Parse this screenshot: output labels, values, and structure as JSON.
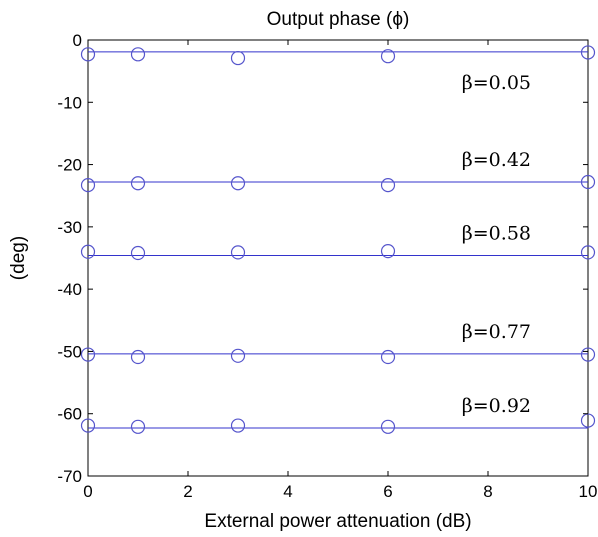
{
  "chart_data": {
    "type": "scatter",
    "title": "Output phase (ϕ)",
    "xlabel": "External power attenuation (dB)",
    "ylabel": "(deg)",
    "xlim": [
      0,
      10
    ],
    "ylim": [
      -70,
      0
    ],
    "xticks": [
      0,
      2,
      4,
      6,
      8,
      10
    ],
    "yticks": [
      0,
      -10,
      -20,
      -30,
      -40,
      -50,
      -60,
      -70
    ],
    "grid": false,
    "colors": {
      "markers": "#5555cc",
      "lines": "#3333cc",
      "axes": "#000000"
    },
    "series": [
      {
        "annotation": "β=0.05",
        "fit": -1.9,
        "x": [
          0,
          1,
          3,
          6,
          10
        ],
        "y": [
          -2.3,
          -2.3,
          -2.9,
          -2.6,
          -2.0
        ]
      },
      {
        "annotation": "β=0.42",
        "fit": -22.8,
        "x": [
          0,
          1,
          3,
          6,
          10
        ],
        "y": [
          -23.3,
          -23.0,
          -23.0,
          -23.3,
          -22.8
        ]
      },
      {
        "annotation": "β=0.58",
        "fit": -34.6,
        "x": [
          0,
          1,
          3,
          6,
          10
        ],
        "y": [
          -34.0,
          -34.2,
          -34.1,
          -33.9,
          -34.1
        ]
      },
      {
        "annotation": "β=0.77",
        "fit": -50.4,
        "x": [
          0,
          1,
          3,
          6,
          10
        ],
        "y": [
          -50.5,
          -50.9,
          -50.7,
          -50.9,
          -50.5
        ]
      },
      {
        "annotation": "β=0.92",
        "fit": -62.3,
        "x": [
          0,
          1,
          3,
          6,
          10
        ],
        "y": [
          -61.9,
          -62.1,
          -61.9,
          -62.1,
          -61.1
        ]
      }
    ]
  }
}
